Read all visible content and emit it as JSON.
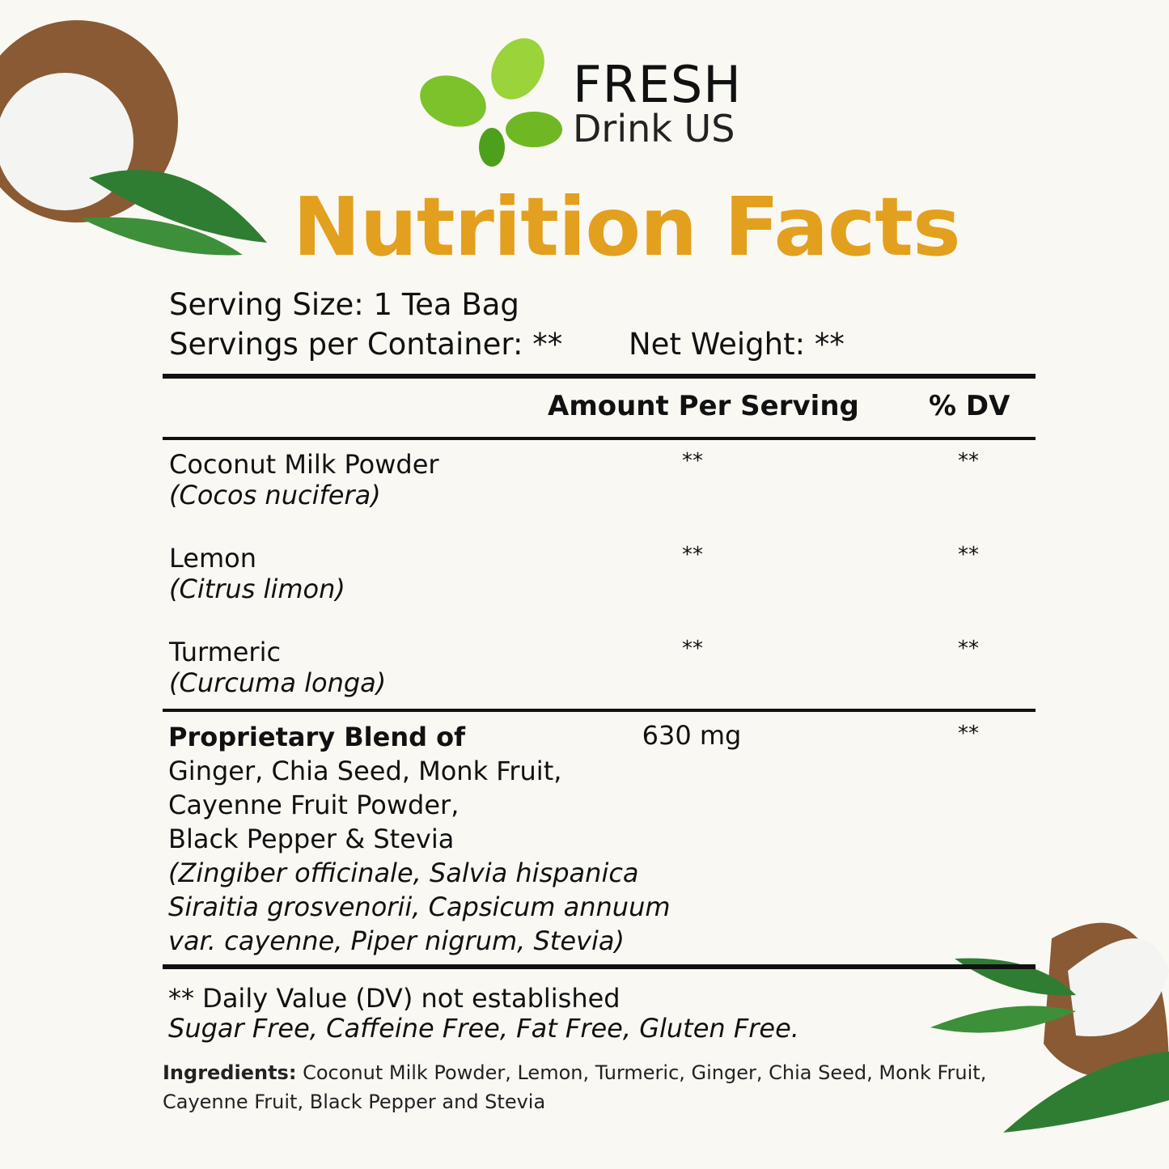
{
  "logo": {
    "brand": "FRESH",
    "sub": "Drink US"
  },
  "title": "Nutrition Facts",
  "serving": {
    "size": "Serving Size: 1 Tea Bag",
    "per_container": "Servings per Container: **",
    "net_weight": "Net Weight: **"
  },
  "table": {
    "header": [
      "Amount Per Serving",
      "% DV"
    ],
    "rows": [
      {
        "name": "Coconut Milk Powder",
        "latin": "(Cocos nucifera)",
        "amount": "**",
        "dv": "**"
      },
      {
        "name": "Lemon",
        "latin": "(Citrus limon)",
        "amount": "**",
        "dv": "**"
      },
      {
        "name": "Turmeric",
        "latin": "(Curcuma longa)",
        "amount": "**",
        "dv": "**"
      }
    ],
    "blend": {
      "title": "Proprietary Blend of",
      "lines": [
        "Ginger, Chia Seed, Monk Fruit,",
        "Cayenne Fruit Powder,",
        "Black Pepper & Stevia"
      ],
      "latin_lines": [
        "(Zingiber officinale, Salvia hispanica",
        "Siraitia grosvenorii, Capsicum annuum",
        "var. cayenne, Piper nigrum, Stevia)"
      ],
      "amount": "630 mg",
      "dv": "**"
    }
  },
  "footnotes": {
    "dv_note": "** Daily Value (DV) not established",
    "free": "Sugar Free, Caffeine Free, Fat Free, Gluten Free."
  },
  "ingredients": {
    "label": "Ingredients:",
    "text": "Coconut Milk Powder, Lemon, Turmeric, Ginger, Chia Seed, Monk Fruit, Cayenne Fruit, Black Pepper and Stevia"
  }
}
